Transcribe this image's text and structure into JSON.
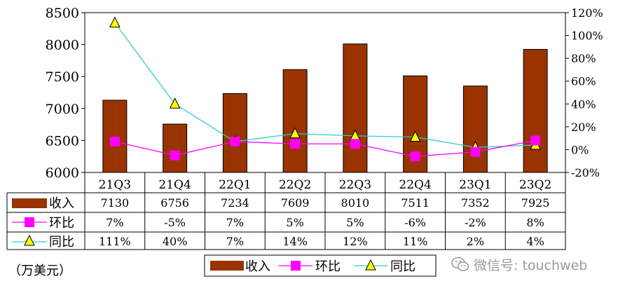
{
  "chart_data": {
    "type": "bar",
    "categories": [
      "21Q3",
      "21Q4",
      "22Q1",
      "22Q2",
      "22Q3",
      "22Q4",
      "23Q1",
      "23Q2"
    ],
    "series": [
      {
        "name": "收入",
        "kind": "bar",
        "axis": "left",
        "color": "#993300",
        "values": [
          7130,
          6756,
          7234,
          7609,
          8010,
          7511,
          7352,
          7925
        ],
        "labels": [
          "7130",
          "6756",
          "7234",
          "7609",
          "8010",
          "7511",
          "7352",
          "7925"
        ]
      },
      {
        "name": "环比",
        "kind": "line",
        "axis": "right",
        "color": "#ff00ff",
        "marker": "square",
        "values": [
          7,
          -5,
          7,
          5,
          5,
          -6,
          -2,
          8
        ],
        "labels": [
          "7%",
          "-5%",
          "7%",
          "5%",
          "5%",
          "-6%",
          "-2%",
          "8%"
        ]
      },
      {
        "name": "同比",
        "kind": "line",
        "axis": "right",
        "color": "#33cccc",
        "marker": "triangle",
        "marker_fill": "#ffff00",
        "values": [
          111,
          40,
          7,
          14,
          12,
          11,
          2,
          4
        ],
        "labels": [
          "111%",
          "40%",
          "7%",
          "14%",
          "12%",
          "11%",
          "2%",
          "4%"
        ]
      }
    ],
    "y_left": {
      "range": [
        6000,
        8500
      ],
      "ticks": [
        "6000",
        "6500",
        "7000",
        "7500",
        "8000",
        "8500"
      ]
    },
    "y_right": {
      "range": [
        -20,
        120
      ],
      "ticks": [
        "-20%",
        "0%",
        "20%",
        "40%",
        "60%",
        "80%",
        "100%",
        "120%"
      ]
    },
    "grid": false,
    "legend": {
      "position": "bottom-center",
      "entries": [
        "收入",
        "环比",
        "同比"
      ]
    },
    "unit_label": "（万美元）"
  },
  "watermark": {
    "text": "微信号: touchweb"
  }
}
